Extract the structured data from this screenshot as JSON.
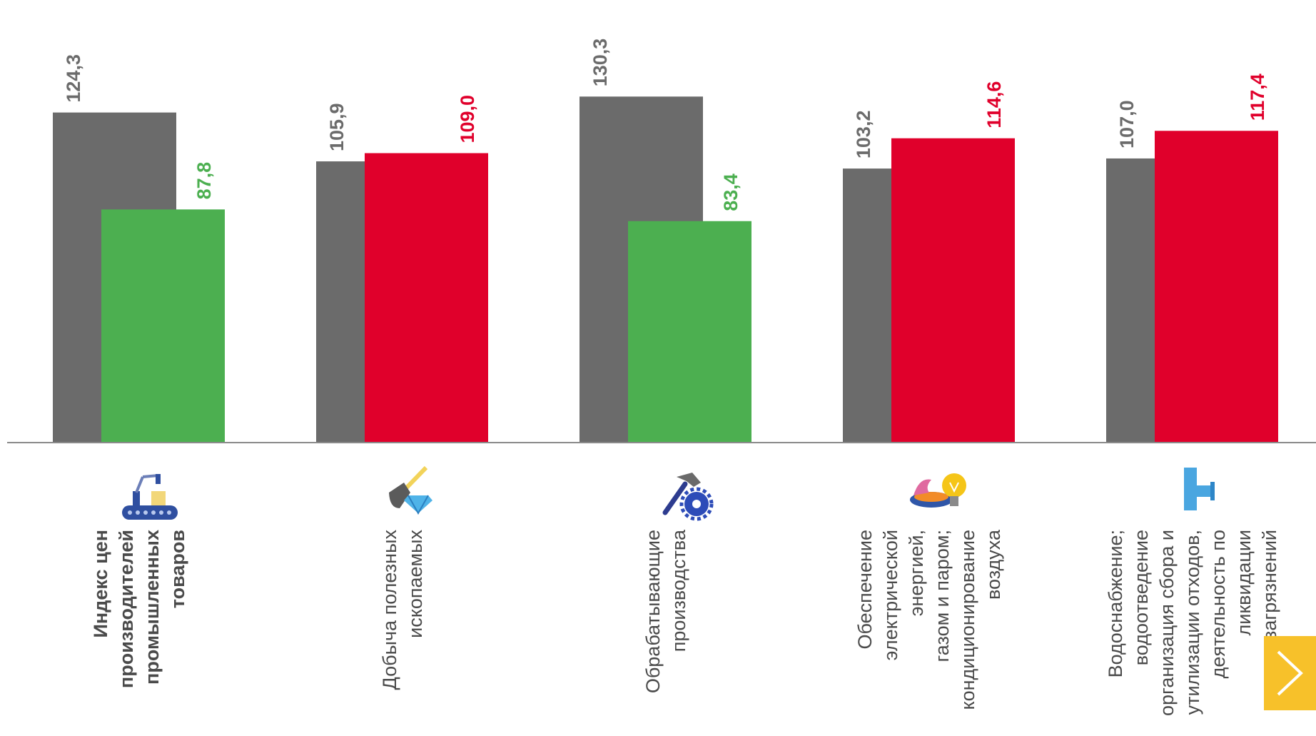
{
  "chart_data": {
    "type": "bar",
    "categories": [
      "Индекс цен производителей промышленных товаров",
      "Добыча полезных ископаемых",
      "Обрабатывающие производства",
      "Обеспечение электрической энергией, газом и паром; кондиционирование воздуха",
      "Водоснабжение; водоотведение организация сбора и утилизации отходов, деятельность по ликвидации загрязнений"
    ],
    "category_lines": [
      [
        "Индекс цен",
        "производителей",
        "промышленных",
        "товаров"
      ],
      [
        "Добыча полезных",
        "ископаемых"
      ],
      [
        "Обрабатывающие",
        "производства"
      ],
      [
        "Обеспечение",
        "электрической",
        "энергией,",
        "газом и паром;",
        "кондиционирование",
        "воздуха"
      ],
      [
        "Водоснабжение;",
        "водоотведение",
        "организация сбора и",
        "утилизации отходов,",
        "деятельность по",
        "ликвидации",
        "загрязнений"
      ]
    ],
    "category_icons": [
      "conveyor-icon",
      "shovel-diamond-icon",
      "hammer-gear-icon",
      "gas-burner-bulb-icon",
      "water-pipe-icon"
    ],
    "series": [
      {
        "values": [
          124.3,
          105.9,
          130.3,
          103.2,
          107.0
        ],
        "labels": [
          "124,3",
          "105,9",
          "130,3",
          "103,2",
          "107,0"
        ],
        "color": "#6b6b6b",
        "label_color": "#6b6b6b"
      },
      {
        "values": [
          87.8,
          109.0,
          83.4,
          114.6,
          117.4
        ],
        "labels": [
          "87,8",
          "109,0",
          "83,4",
          "114,6",
          "117,4"
        ],
        "colors": [
          "#4caf50",
          "#e0002b",
          "#4caf50",
          "#e0002b",
          "#e0002b"
        ]
      }
    ],
    "ylim": [
      0,
      140
    ],
    "baseline": 0,
    "grid": false,
    "legend": "none"
  },
  "nav": {
    "next_icon": "chevron-right-icon"
  }
}
